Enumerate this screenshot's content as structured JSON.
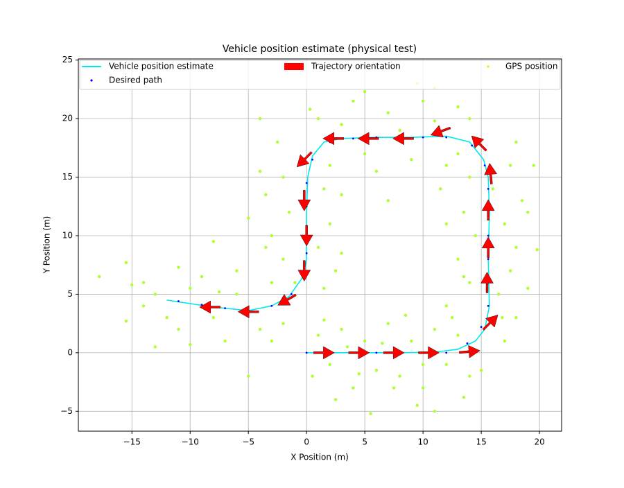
{
  "chart_data": {
    "type": "line",
    "title": "Vehicle position estimate (physical test)",
    "xlabel": "X Position (m)",
    "ylabel": "Y Position (m)",
    "xlim": [
      -19.6,
      21.9
    ],
    "ylim": [
      -6.7,
      25.1
    ],
    "xticks": [
      {
        "value": -15,
        "label": "−15"
      },
      {
        "value": -10,
        "label": "−10"
      },
      {
        "value": -5,
        "label": "−5"
      },
      0,
      5,
      10,
      15,
      20
    ],
    "yticks": [
      {
        "value": -5,
        "label": "−5"
      },
      0,
      5,
      10,
      15,
      20,
      25
    ],
    "grid": true,
    "legend": "top",
    "series": [
      {
        "name": "Vehicle position estimate",
        "type": "line",
        "color": "#00e8f0",
        "x": [
          0,
          4,
          8,
          11,
          13,
          14.5,
          15.3,
          15.7,
          15.6,
          15.7,
          15.6,
          15.2,
          14,
          12,
          9,
          6,
          3,
          1.5,
          0.5,
          0.1,
          0,
          0,
          -0.3,
          -1.5,
          -3,
          -5,
          -8,
          -12
        ],
        "y": [
          0,
          0,
          0,
          0.05,
          0.3,
          1,
          2,
          4,
          8,
          12,
          15,
          16.5,
          18,
          18.5,
          18.4,
          18.4,
          18.3,
          18,
          16.8,
          15,
          12,
          8,
          6.5,
          4.8,
          4,
          3.6,
          3.9,
          4.5
        ]
      },
      {
        "name": "Desired path",
        "type": "scatter",
        "color": "#0000ff",
        "x": [
          0,
          2,
          4,
          6,
          8,
          10,
          12,
          13.8,
          15,
          15.6,
          15.6,
          15.6,
          15.6,
          15.6,
          15.6,
          15.3,
          14.2,
          12,
          10,
          8,
          6,
          4,
          2,
          0.5,
          0,
          0,
          0,
          0,
          -0.3,
          -1.3,
          -3,
          -5,
          -7,
          -9,
          -11
        ],
        "y": [
          0,
          0,
          0,
          0,
          0,
          0,
          0,
          0.8,
          2.2,
          4,
          6,
          8,
          10,
          12,
          14,
          16,
          17.7,
          18.4,
          18.4,
          18.4,
          18.4,
          18.3,
          18,
          16.5,
          14.5,
          12.5,
          10.5,
          8.5,
          6.5,
          5,
          4,
          3.6,
          3.8,
          4.1,
          4.4
        ]
      },
      {
        "name": "Trajectory orientation",
        "type": "quiver",
        "color": "#ff0000",
        "x": [
          1.5,
          4.5,
          7.5,
          10.5,
          14,
          15.8,
          15.5,
          15.6,
          15.6,
          15.8,
          14.8,
          11.5,
          8.3,
          5.3,
          2.3,
          -0.2,
          -0.2,
          0,
          -0.2,
          -1.7,
          -5,
          -8.3
        ],
        "y": [
          0,
          0,
          0,
          0,
          0.1,
          2.6,
          6,
          9,
          12.2,
          15.3,
          17.9,
          18.9,
          18.3,
          18.3,
          18.3,
          16.5,
          13,
          10,
          7,
          4.5,
          3.5,
          3.9
        ],
        "angle": [
          0,
          0,
          0,
          0,
          5,
          45,
          90,
          90,
          90,
          95,
          135,
          200,
          180,
          180,
          180,
          225,
          270,
          270,
          270,
          210,
          180,
          180
        ]
      },
      {
        "name": "GPS position",
        "type": "scatter",
        "color": "#adff2f",
        "x": [
          1,
          2,
          3,
          0.5,
          4,
          5,
          6,
          7,
          8,
          9,
          10,
          11,
          12,
          13,
          14,
          2.5,
          5.5,
          7.5,
          9.5,
          11,
          12.5,
          3.5,
          6.5,
          10,
          1.5,
          8.5,
          4.5,
          13.5,
          17,
          18,
          16.5,
          14,
          17.5,
          13,
          18,
          14.5,
          17,
          13.5,
          18.5,
          16,
          14,
          17.5,
          13,
          18,
          19,
          19.8,
          12,
          12,
          11.5,
          19,
          16.8,
          19.5,
          15,
          13.5,
          1,
          3,
          5,
          7,
          9,
          11,
          13,
          2,
          4,
          6,
          8,
          10,
          12,
          5,
          9.5,
          0.3,
          7,
          3,
          11,
          14,
          -2,
          1.5,
          -1.5,
          2,
          -3,
          1,
          -2,
          2.5,
          -1,
          -3.5,
          -4,
          -2.5,
          -4,
          1.5,
          -3,
          3,
          -5,
          -3.5,
          -4,
          -6,
          -8,
          -10,
          -12,
          -13,
          -14,
          -15,
          -11,
          -9,
          -7,
          -5,
          -3,
          -6,
          -15.5,
          -15.5,
          -17.8,
          -13,
          -10,
          -8,
          -11,
          -14,
          -2,
          -7.5
        ],
        "y": [
          1.5,
          -1,
          2,
          -2,
          -3,
          1,
          -1.5,
          2.5,
          -2,
          1,
          -3,
          2,
          -1,
          1.5,
          -2,
          -4,
          -5.2,
          -3,
          -4.5,
          -5,
          3,
          0.5,
          0.8,
          -1,
          2.8,
          3.2,
          -1.8,
          -3.8,
          1,
          3,
          5,
          6,
          7,
          8,
          9,
          10,
          11,
          12,
          13,
          14,
          15,
          16,
          17,
          18,
          5.5,
          8.8,
          4,
          11,
          14,
          12,
          3,
          16,
          -1.5,
          6.5,
          20,
          19.5,
          17,
          20.5,
          16.5,
          19.8,
          21,
          16,
          21.5,
          15.5,
          19,
          21.5,
          16,
          22.3,
          23,
          20.8,
          13,
          13.5,
          22.6,
          20,
          15,
          14,
          12,
          11,
          10,
          9,
          8,
          7,
          6,
          13.5,
          15.5,
          18,
          20,
          5.5,
          6,
          8.5,
          11.5,
          9,
          2,
          5,
          3,
          5.5,
          3,
          5,
          6,
          5.8,
          2,
          6.5,
          1,
          -2,
          1,
          7,
          2.7,
          7.7,
          6.5,
          0.5,
          0.7,
          9.5,
          7.3,
          4,
          2.5,
          5.2
        ]
      }
    ]
  }
}
